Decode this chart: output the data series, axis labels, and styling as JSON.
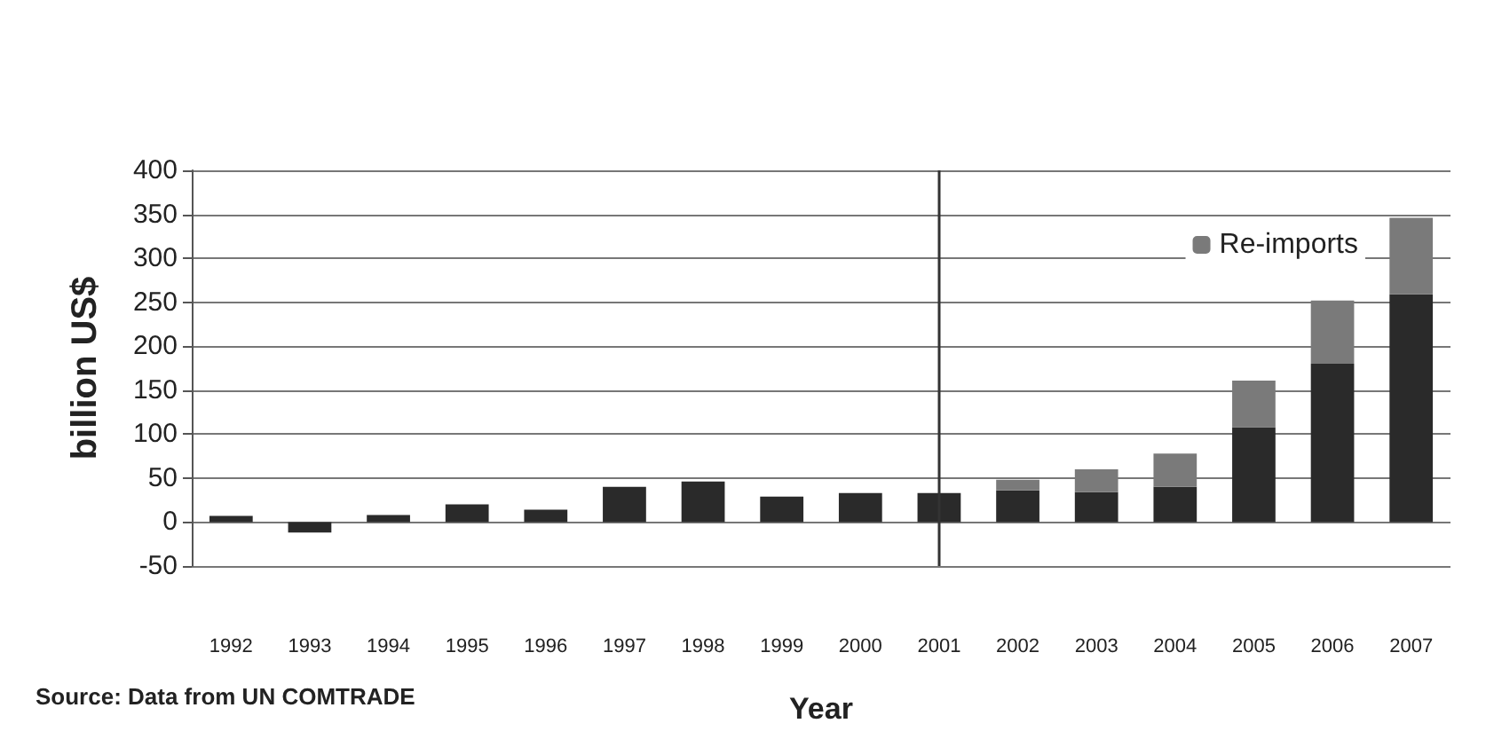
{
  "chart_data": {
    "type": "bar",
    "stacked": true,
    "xlabel": "Year",
    "ylabel": "billion US$",
    "annotations": [
      "Source: Data from UN COMTRADE"
    ],
    "categories": [
      "1992",
      "1993",
      "1994",
      "1995",
      "1996",
      "1997",
      "1998",
      "1999",
      "2000",
      "2001",
      "2002",
      "2003",
      "2004",
      "2005",
      "2006",
      "2007"
    ],
    "series": [
      {
        "color": "#2a2a2a",
        "values": [
          7,
          -12,
          8,
          20,
          14,
          40,
          46,
          29,
          33,
          33,
          36,
          34,
          40,
          108,
          180,
          259
        ]
      },
      {
        "name": "Re-imports",
        "color": "#7a7a7a",
        "values": [
          0,
          0,
          0,
          0,
          0,
          0,
          0,
          0,
          0,
          0,
          12,
          26,
          38,
          53,
          72,
          87
        ]
      }
    ],
    "ylim": [
      -50,
      400
    ],
    "yticks": [
      -50,
      0,
      50,
      100,
      150,
      200,
      250,
      300,
      350,
      400
    ],
    "ref_lines": [
      {
        "axis": "x",
        "value": "2001",
        "color": "#333333"
      }
    ],
    "grid": "y",
    "legend": "top right"
  }
}
